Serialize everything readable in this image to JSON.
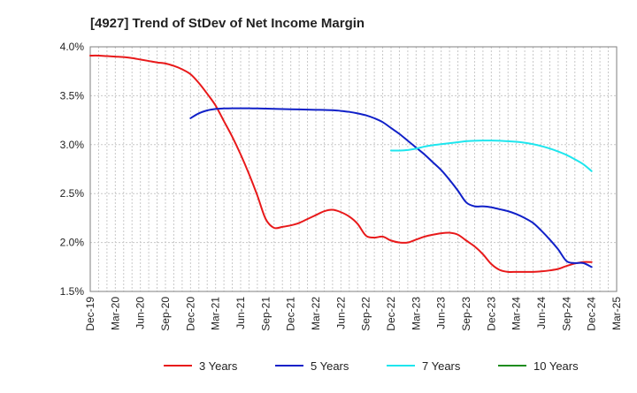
{
  "chart_data": {
    "type": "line",
    "title": "[4927]  Trend of StDev of Net Income Margin",
    "xlabel": "",
    "ylabel": "",
    "ylim": [
      1.5,
      4.0
    ],
    "y_tick_values": [
      1.5,
      2.0,
      2.5,
      3.0,
      3.5,
      4.0
    ],
    "y_tick_labels": [
      "1.5%",
      "2.0%",
      "2.5%",
      "3.0%",
      "3.5%",
      "4.0%"
    ],
    "x_tick_labels": [
      "Dec-19",
      "Mar-20",
      "Jun-20",
      "Sep-20",
      "Dec-20",
      "Mar-21",
      "Jun-21",
      "Sep-21",
      "Dec-21",
      "Mar-22",
      "Jun-22",
      "Sep-22",
      "Dec-22",
      "Mar-23",
      "Jun-23",
      "Sep-23",
      "Dec-23",
      "Mar-24",
      "Jun-24",
      "Sep-24",
      "Dec-24",
      "Mar-25"
    ],
    "grid": true,
    "legend_position": "bottom",
    "series": [
      {
        "name": "3 Years",
        "color": "#e8191a",
        "points": [
          [
            "Dec-19",
            3.91
          ],
          [
            "Jan-20",
            3.91
          ],
          [
            "Feb-20",
            3.905
          ],
          [
            "Mar-20",
            3.9
          ],
          [
            "Apr-20",
            3.895
          ],
          [
            "May-20",
            3.885
          ],
          [
            "Jun-20",
            3.87
          ],
          [
            "Jul-20",
            3.855
          ],
          [
            "Aug-20",
            3.84
          ],
          [
            "Sep-20",
            3.83
          ],
          [
            "Oct-20",
            3.805
          ],
          [
            "Nov-20",
            3.77
          ],
          [
            "Dec-20",
            3.72
          ],
          [
            "Jan-21",
            3.63
          ],
          [
            "Feb-21",
            3.52
          ],
          [
            "Mar-21",
            3.4
          ],
          [
            "Apr-21",
            3.24
          ],
          [
            "May-21",
            3.08
          ],
          [
            "Jun-21",
            2.9
          ],
          [
            "Jul-21",
            2.7
          ],
          [
            "Aug-21",
            2.48
          ],
          [
            "Sep-21",
            2.24
          ],
          [
            "Oct-21",
            2.15
          ],
          [
            "Nov-21",
            2.16
          ],
          [
            "Dec-21",
            2.175
          ],
          [
            "Jan-22",
            2.2
          ],
          [
            "Feb-22",
            2.24
          ],
          [
            "Mar-22",
            2.28
          ],
          [
            "Apr-22",
            2.32
          ],
          [
            "May-22",
            2.335
          ],
          [
            "Jun-22",
            2.31
          ],
          [
            "Jul-22",
            2.265
          ],
          [
            "Aug-22",
            2.19
          ],
          [
            "Sep-22",
            2.07
          ],
          [
            "Oct-22",
            2.05
          ],
          [
            "Nov-22",
            2.06
          ],
          [
            "Dec-22",
            2.02
          ],
          [
            "Jan-23",
            2.0
          ],
          [
            "Feb-23",
            2.0
          ],
          [
            "Mar-23",
            2.03
          ],
          [
            "Apr-23",
            2.06
          ],
          [
            "May-23",
            2.08
          ],
          [
            "Jun-23",
            2.095
          ],
          [
            "Jul-23",
            2.1
          ],
          [
            "Aug-23",
            2.08
          ],
          [
            "Sep-23",
            2.02
          ],
          [
            "Oct-23",
            1.96
          ],
          [
            "Nov-23",
            1.88
          ],
          [
            "Dec-23",
            1.78
          ],
          [
            "Jan-24",
            1.72
          ],
          [
            "Feb-24",
            1.7
          ],
          [
            "Mar-24",
            1.7
          ],
          [
            "Apr-24",
            1.7
          ],
          [
            "May-24",
            1.7
          ],
          [
            "Jun-24",
            1.705
          ],
          [
            "Jul-24",
            1.715
          ],
          [
            "Aug-24",
            1.73
          ],
          [
            "Sep-24",
            1.76
          ],
          [
            "Oct-24",
            1.785
          ],
          [
            "Nov-24",
            1.8
          ],
          [
            "Dec-24",
            1.8
          ]
        ]
      },
      {
        "name": "5 Years",
        "color": "#1020c8",
        "points": [
          [
            "Dec-20",
            3.27
          ],
          [
            "Jan-21",
            3.32
          ],
          [
            "Feb-21",
            3.35
          ],
          [
            "Mar-21",
            3.365
          ],
          [
            "Apr-21",
            3.37
          ],
          [
            "May-21",
            3.372
          ],
          [
            "Jun-21",
            3.372
          ],
          [
            "Jul-21",
            3.372
          ],
          [
            "Aug-21",
            3.37
          ],
          [
            "Sep-21",
            3.368
          ],
          [
            "Oct-21",
            3.366
          ],
          [
            "Nov-21",
            3.364
          ],
          [
            "Dec-21",
            3.362
          ],
          [
            "Jan-22",
            3.36
          ],
          [
            "Feb-22",
            3.358
          ],
          [
            "Mar-22",
            3.356
          ],
          [
            "Apr-22",
            3.355
          ],
          [
            "May-22",
            3.352
          ],
          [
            "Jun-22",
            3.345
          ],
          [
            "Jul-22",
            3.335
          ],
          [
            "Aug-22",
            3.32
          ],
          [
            "Sep-22",
            3.3
          ],
          [
            "Oct-22",
            3.27
          ],
          [
            "Nov-22",
            3.23
          ],
          [
            "Dec-22",
            3.17
          ],
          [
            "Jan-23",
            3.11
          ],
          [
            "Feb-23",
            3.04
          ],
          [
            "Mar-23",
            2.97
          ],
          [
            "Apr-23",
            2.9
          ],
          [
            "May-23",
            2.82
          ],
          [
            "Jun-23",
            2.74
          ],
          [
            "Jul-23",
            2.64
          ],
          [
            "Aug-23",
            2.53
          ],
          [
            "Sep-23",
            2.41
          ],
          [
            "Oct-23",
            2.37
          ],
          [
            "Nov-23",
            2.37
          ],
          [
            "Dec-23",
            2.36
          ],
          [
            "Jan-24",
            2.34
          ],
          [
            "Feb-24",
            2.32
          ],
          [
            "Mar-24",
            2.29
          ],
          [
            "Apr-24",
            2.25
          ],
          [
            "May-24",
            2.2
          ],
          [
            "Jun-24",
            2.12
          ],
          [
            "Jul-24",
            2.03
          ],
          [
            "Aug-24",
            1.93
          ],
          [
            "Sep-24",
            1.81
          ],
          [
            "Oct-24",
            1.79
          ],
          [
            "Nov-24",
            1.79
          ],
          [
            "Dec-24",
            1.75
          ]
        ]
      },
      {
        "name": "7 Years",
        "color": "#1ee6ee",
        "points": [
          [
            "Dec-22",
            2.94
          ],
          [
            "Jan-23",
            2.94
          ],
          [
            "Feb-23",
            2.945
          ],
          [
            "Mar-23",
            2.96
          ],
          [
            "Apr-23",
            2.98
          ],
          [
            "May-23",
            2.995
          ],
          [
            "Jun-23",
            3.005
          ],
          [
            "Jul-23",
            3.015
          ],
          [
            "Aug-23",
            3.025
          ],
          [
            "Sep-23",
            3.035
          ],
          [
            "Oct-23",
            3.04
          ],
          [
            "Nov-23",
            3.042
          ],
          [
            "Dec-23",
            3.042
          ],
          [
            "Jan-24",
            3.04
          ],
          [
            "Feb-24",
            3.035
          ],
          [
            "Mar-24",
            3.03
          ],
          [
            "Apr-24",
            3.02
          ],
          [
            "May-24",
            3.005
          ],
          [
            "Jun-24",
            2.985
          ],
          [
            "Jul-24",
            2.96
          ],
          [
            "Aug-24",
            2.93
          ],
          [
            "Sep-24",
            2.895
          ],
          [
            "Oct-24",
            2.85
          ],
          [
            "Nov-24",
            2.8
          ],
          [
            "Dec-24",
            2.73
          ]
        ]
      },
      {
        "name": "10 Years",
        "color": "#1e8c1e",
        "points": []
      }
    ]
  }
}
